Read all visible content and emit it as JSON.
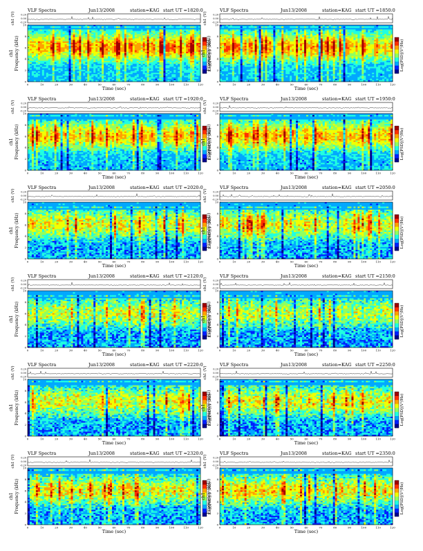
{
  "chart_data": {
    "type": "heatmap",
    "rows": 6,
    "columns": 2,
    "panels": [
      {
        "title_left": "VLF Spectra",
        "title_date": "Jun13/2008",
        "title_station": "station=KAG",
        "title_start": "start  UT  =1820:0",
        "intensity": 0.85,
        "band_top": 0.97,
        "noise": 0.35
      },
      {
        "title_left": "VLF Spectra",
        "title_date": "Jun13/2008",
        "title_station": "station=KAG",
        "title_start": "start  UT  =1850:0",
        "intensity": 0.82,
        "band_top": 0.97,
        "noise": 0.35
      },
      {
        "title_left": "VLF Spectra",
        "title_date": "Jun13/2008",
        "title_station": "station=KAG",
        "title_start": "start  UT  =1920:0",
        "intensity": 0.78,
        "band_top": 0.95,
        "noise": 0.4
      },
      {
        "title_left": "VLF Spectra",
        "title_date": "Jun13/2008",
        "title_station": "station=KAG",
        "title_start": "start  UT  =1950:0",
        "intensity": 0.78,
        "band_top": 0.95,
        "noise": 0.4
      },
      {
        "title_left": "VLF Spectra",
        "title_date": "Jun13/2008",
        "title_station": "station=KAG",
        "title_start": "start  UT  =2020:0",
        "intensity": 0.62,
        "band_top": 0.92,
        "noise": 0.5
      },
      {
        "title_left": "VLF Spectra",
        "title_date": "Jun13/2008",
        "title_station": "station=KAG",
        "title_start": "start  UT  =2050:0",
        "intensity": 0.6,
        "band_top": 0.92,
        "noise": 0.5
      },
      {
        "title_left": "VLF Spectra",
        "title_date": "Jun13/2008",
        "title_station": "station=KAG",
        "title_start": "start  UT  =2120:0",
        "intensity": 0.52,
        "band_top": 0.92,
        "noise": 0.55
      },
      {
        "title_left": "VLF Spectra",
        "title_date": "Jun13/2008",
        "title_station": "station=KAG",
        "title_start": "start  UT  =2150:0",
        "intensity": 0.5,
        "band_top": 0.92,
        "noise": 0.55
      },
      {
        "title_left": "VLF Spectra",
        "title_date": "Jun13/2008",
        "title_station": "station=KAG",
        "title_start": "start  UT  =2220:0",
        "intensity": 0.58,
        "band_top": 0.95,
        "noise": 0.55
      },
      {
        "title_left": "VLF Spectra",
        "title_date": "Jun13/2008",
        "title_station": "station=KAG",
        "title_start": "start  UT  =2250:0",
        "intensity": 0.6,
        "band_top": 0.95,
        "noise": 0.55
      },
      {
        "title_left": "VLF Spectra",
        "title_date": "Jun13/2008",
        "title_station": "station=KAG",
        "title_start": "start  UT  =2320:0",
        "intensity": 0.62,
        "band_top": 0.95,
        "noise": 0.55
      },
      {
        "title_left": "VLF Spectra",
        "title_date": "Jun13/2008",
        "title_station": "station=KAG",
        "title_start": "start  UT  =2350:0",
        "intensity": 0.66,
        "band_top": 0.95,
        "noise": 0.55
      }
    ],
    "time_axis": {
      "label": "Time  (sec)",
      "range": [
        0,
        120
      ],
      "ticks": [
        0,
        10,
        20,
        30,
        40,
        50,
        60,
        70,
        80,
        90,
        100,
        110,
        120
      ]
    },
    "freq_axis": {
      "label": "Frequency  (kHz)",
      "range": [
        0,
        10
      ],
      "ticks": [
        0,
        2,
        4,
        6,
        8,
        10
      ]
    },
    "ch1_axis": {
      "label": "ch1 (V)",
      "ticks": [
        "-0.20",
        "0.00",
        "0.20"
      ]
    },
    "colorbar": {
      "label": "Log[PSD](V²/Hz)"
    },
    "colormap": [
      "#00008f",
      "#0020ff",
      "#00a8ff",
      "#20ffe0",
      "#90ff60",
      "#f0ff00",
      "#ffa000",
      "#ff3000",
      "#a00000"
    ]
  }
}
